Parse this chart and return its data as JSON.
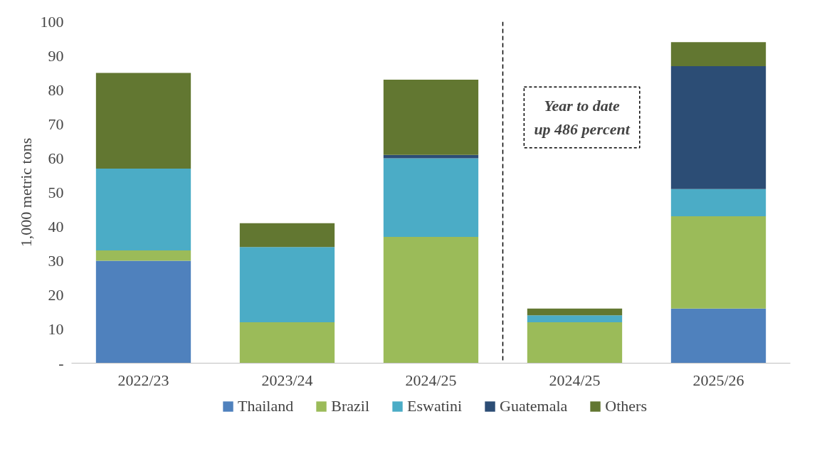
{
  "chart_data": {
    "type": "bar",
    "stacked": true,
    "ylabel": "1,000 metric tons",
    "categories": [
      "2022/23",
      "2023/24",
      "2024/25",
      "2024/25",
      "2025/26"
    ],
    "series": [
      {
        "name": "Thailand",
        "color": "#4f81bd",
        "values": [
          30,
          0,
          0,
          0,
          16
        ]
      },
      {
        "name": "Brazil",
        "color": "#9bbb59",
        "values": [
          3,
          12,
          37,
          12,
          27
        ]
      },
      {
        "name": "Eswatini",
        "color": "#4bacc6",
        "values": [
          24,
          22,
          23,
          2,
          8
        ]
      },
      {
        "name": "Guatemala",
        "color": "#2c4d75",
        "values": [
          0,
          0,
          1,
          0,
          36
        ]
      },
      {
        "name": "Others",
        "color": "#627731",
        "values": [
          28,
          7,
          22,
          2,
          7
        ]
      }
    ],
    "ylim": [
      0,
      100
    ],
    "yticks": [
      {
        "value": 0,
        "label": "-"
      },
      10,
      20,
      30,
      40,
      50,
      60,
      70,
      80,
      90,
      100
    ],
    "annotations": [
      "Year to date\nup 486 percent"
    ],
    "grid": false,
    "legend": "bottom"
  }
}
